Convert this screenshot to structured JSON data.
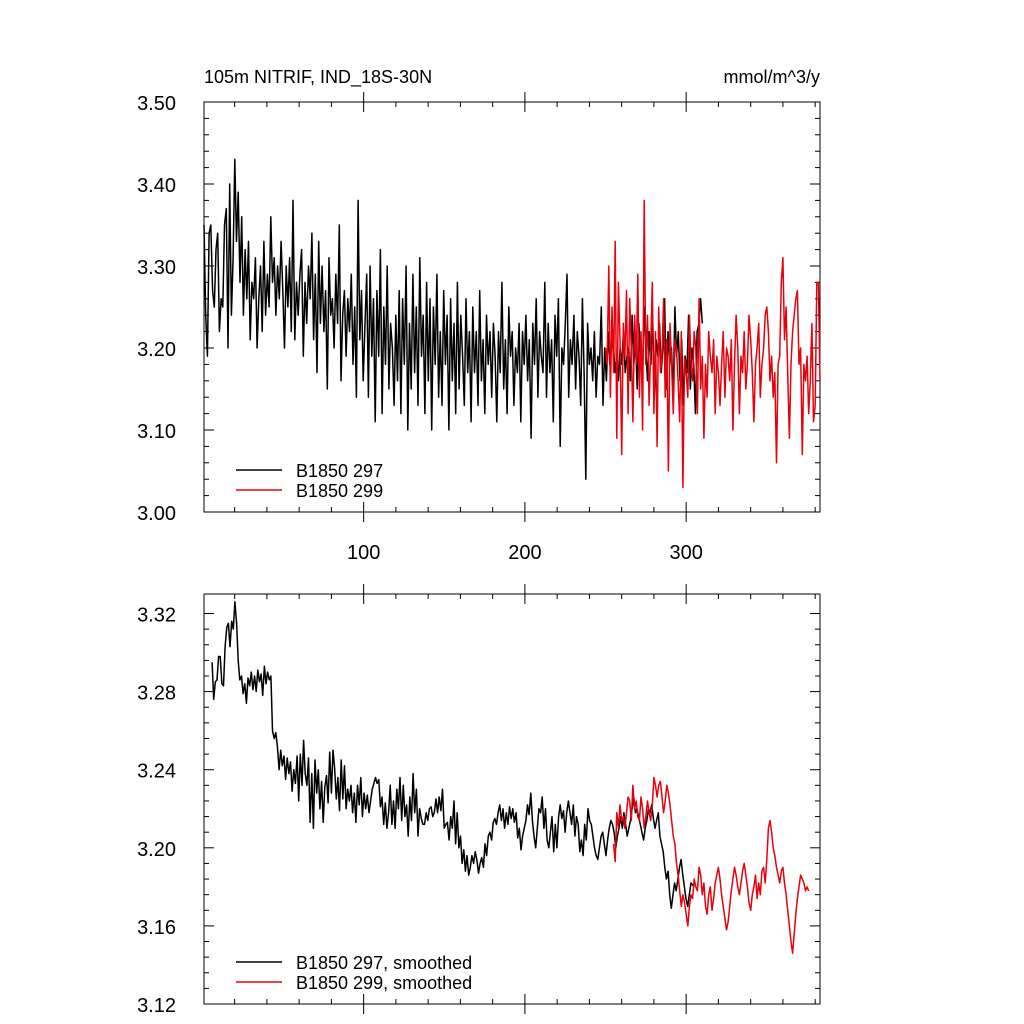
{
  "header": {
    "title": "105m NITRIF, IND_18S-30N",
    "units": "mmol/m^3/y"
  },
  "colors": {
    "series_297": "#000000",
    "series_299": "#e8000b",
    "axes": "#000000",
    "background": "#ffffff"
  },
  "chart_data": [
    {
      "type": "line",
      "panel": "top",
      "xlim": [
        1,
        383
      ],
      "ylim": [
        3.0,
        3.5
      ],
      "x_ticks": [
        100,
        200,
        300
      ],
      "x_tick_labels": [
        "100",
        "200",
        "300"
      ],
      "y_ticks": [
        3.0,
        3.1,
        3.2,
        3.3,
        3.4,
        3.5
      ],
      "y_tick_labels": [
        "3.00",
        "3.10",
        "3.20",
        "3.30",
        "3.40",
        "3.50"
      ],
      "grid": false,
      "legend_position": "bottom-left",
      "series": [
        {
          "name": "B1850 297",
          "color": "#000000",
          "x_start": 1,
          "x_end": 310,
          "values": [
            3.35,
            3.24,
            3.19,
            3.34,
            3.35,
            3.27,
            3.25,
            3.32,
            3.34,
            3.22,
            3.26,
            3.25,
            3.35,
            3.37,
            3.2,
            3.4,
            3.24,
            3.31,
            3.43,
            3.33,
            3.39,
            3.28,
            3.36,
            3.24,
            3.32,
            3.26,
            3.33,
            3.21,
            3.28,
            3.26,
            3.31,
            3.2,
            3.26,
            3.3,
            3.22,
            3.33,
            3.24,
            3.29,
            3.25,
            3.36,
            3.28,
            3.31,
            3.24,
            3.3,
            3.26,
            3.33,
            3.27,
            3.2,
            3.3,
            3.25,
            3.31,
            3.22,
            3.38,
            3.21,
            3.28,
            3.24,
            3.29,
            3.32,
            3.19,
            3.28,
            3.23,
            3.3,
            3.26,
            3.34,
            3.21,
            3.29,
            3.17,
            3.33,
            3.23,
            3.3,
            3.22,
            3.27,
            3.15,
            3.31,
            3.24,
            3.26,
            3.2,
            3.29,
            3.23,
            3.35,
            3.16,
            3.24,
            3.27,
            3.19,
            3.26,
            3.22,
            3.29,
            3.18,
            3.25,
            3.14,
            3.38,
            3.21,
            3.27,
            3.16,
            3.23,
            3.29,
            3.14,
            3.3,
            3.19,
            3.26,
            3.11,
            3.27,
            3.19,
            3.32,
            3.12,
            3.25,
            3.18,
            3.3,
            3.15,
            3.23,
            3.2,
            3.13,
            3.24,
            3.16,
            3.27,
            3.12,
            3.26,
            3.18,
            3.3,
            3.1,
            3.23,
            3.15,
            3.29,
            3.17,
            3.25,
            3.13,
            3.31,
            3.19,
            3.24,
            3.12,
            3.28,
            3.16,
            3.26,
            3.1,
            3.25,
            3.18,
            3.29,
            3.14,
            3.22,
            3.13,
            3.27,
            3.18,
            3.24,
            3.1,
            3.26,
            3.16,
            3.23,
            3.12,
            3.28,
            3.15,
            3.24,
            3.19,
            3.13,
            3.26,
            3.17,
            3.22,
            3.11,
            3.25,
            3.17,
            3.22,
            3.13,
            3.27,
            3.16,
            3.21,
            3.12,
            3.24,
            3.18,
            3.22,
            3.14,
            3.23,
            3.19,
            3.11,
            3.22,
            3.17,
            3.28,
            3.15,
            3.21,
            3.12,
            3.25,
            3.19,
            3.22,
            3.13,
            3.2,
            3.17,
            3.23,
            3.11,
            3.22,
            3.18,
            3.24,
            3.16,
            3.21,
            3.09,
            3.23,
            3.18,
            3.26,
            3.14,
            3.22,
            3.19,
            3.17,
            3.28,
            3.14,
            3.23,
            3.17,
            3.21,
            3.11,
            3.24,
            3.19,
            3.26,
            3.08,
            3.2,
            3.18,
            3.23,
            3.29,
            3.14,
            3.21,
            3.18,
            3.24,
            3.15,
            3.22,
            3.19,
            3.13,
            3.26,
            3.17,
            3.04,
            3.23,
            3.18,
            3.2,
            3.16,
            3.22,
            3.14,
            3.19,
            3.18,
            3.25,
            3.13,
            3.2,
            3.16,
            3.22,
            3.18,
            3.2,
            3.21,
            3.17,
            3.19,
            3.16,
            3.2,
            3.18,
            3.22,
            3.17,
            3.19,
            3.2,
            3.16,
            3.24,
            3.18,
            3.21,
            3.15,
            3.23,
            3.19,
            3.17,
            3.25,
            3.2,
            3.16,
            3.22,
            3.18,
            3.24,
            3.14,
            3.21,
            3.19,
            3.23,
            3.17,
            3.2,
            3.26,
            3.15,
            3.22,
            3.18,
            3.2,
            3.14,
            3.25,
            3.19,
            3.22,
            3.16,
            3.21,
            3.13,
            3.19,
            3.17,
            3.24,
            3.15,
            3.2,
            3.18,
            3.12,
            3.22,
            3.23,
            3.26,
            3.23
          ]
        },
        {
          "name": "B1850 299",
          "color": "#e8000b",
          "x_start": 250,
          "x_end": 383,
          "values": [
            3.2,
            3.18,
            3.3,
            3.14,
            3.25,
            3.17,
            3.33,
            3.09,
            3.28,
            3.21,
            3.07,
            3.23,
            3.19,
            3.27,
            3.12,
            3.26,
            3.2,
            3.11,
            3.24,
            3.18,
            3.29,
            3.14,
            3.22,
            3.1,
            3.38,
            3.18,
            3.24,
            3.13,
            3.2,
            3.28,
            3.12,
            3.22,
            3.08,
            3.25,
            3.17,
            3.19,
            3.26,
            3.14,
            3.21,
            3.05,
            3.23,
            3.18,
            3.12,
            3.21,
            3.2,
            3.16,
            3.11,
            3.22,
            3.03,
            3.19,
            3.17,
            3.14,
            3.24,
            3.18,
            3.16,
            3.22,
            3.2,
            3.12,
            3.26,
            3.15,
            3.19,
            3.09,
            3.18,
            3.14,
            3.22,
            3.19,
            3.17,
            3.21,
            3.12,
            3.19,
            3.17,
            3.13,
            3.18,
            3.22,
            3.14,
            3.2,
            3.19,
            3.16,
            3.21,
            3.1,
            3.18,
            3.24,
            3.2,
            3.12,
            3.19,
            3.17,
            3.22,
            3.15,
            3.18,
            3.24,
            3.21,
            3.17,
            3.11,
            3.18,
            3.2,
            3.23,
            3.14,
            3.18,
            3.2,
            3.24,
            3.25,
            3.22,
            3.16,
            3.19,
            3.14,
            3.17,
            3.06,
            3.18,
            3.19,
            3.28,
            3.31,
            3.21,
            3.25,
            3.17,
            3.09,
            3.18,
            3.22,
            3.24,
            3.26,
            3.27,
            3.18,
            3.2,
            3.07,
            3.18,
            3.16,
            3.19,
            3.12,
            3.16,
            3.23,
            3.11,
            3.13,
            3.28,
            3.28,
            3.16
          ]
        }
      ]
    },
    {
      "type": "line",
      "panel": "bottom",
      "xlim": [
        1,
        383
      ],
      "ylim": [
        3.12,
        3.33
      ],
      "y_ticks": [
        3.12,
        3.16,
        3.2,
        3.24,
        3.28,
        3.32
      ],
      "y_tick_labels": [
        "3.12",
        "3.16",
        "3.20",
        "3.24",
        "3.28",
        "3.32"
      ],
      "grid": false,
      "legend_position": "bottom-left",
      "series": [
        {
          "name": "B1850 297, smoothed",
          "color": "#000000",
          "x_start": 6,
          "x_end": 305,
          "values": [
            3.295,
            3.276,
            3.285,
            3.286,
            3.298,
            3.298,
            3.284,
            3.283,
            3.303,
            3.313,
            3.315,
            3.303,
            3.316,
            3.312,
            3.326,
            3.315,
            3.296,
            3.286,
            3.288,
            3.279,
            3.284,
            3.274,
            3.287,
            3.283,
            3.29,
            3.281,
            3.288,
            3.28,
            3.291,
            3.285,
            3.289,
            3.278,
            3.293,
            3.284,
            3.29,
            3.286,
            3.288,
            3.26,
            3.256,
            3.259,
            3.252,
            3.24,
            3.25,
            3.242,
            3.247,
            3.235,
            3.246,
            3.238,
            3.244,
            3.229,
            3.24,
            3.233,
            3.247,
            3.224,
            3.248,
            3.232,
            3.255,
            3.238,
            3.232,
            3.246,
            3.213,
            3.238,
            3.21,
            3.245,
            3.228,
            3.24,
            3.22,
            3.234,
            3.213,
            3.231,
            3.237,
            3.223,
            3.249,
            3.228,
            3.25,
            3.241,
            3.225,
            3.236,
            3.219,
            3.245,
            3.225,
            3.242,
            3.22,
            3.23,
            3.224,
            3.232,
            3.218,
            3.228,
            3.213,
            3.232,
            3.222,
            3.236,
            3.216,
            3.228,
            3.22,
            3.227,
            3.218,
            3.224,
            3.23,
            3.233,
            3.236,
            3.233,
            3.235,
            3.221,
            3.226,
            3.212,
            3.223,
            3.21,
            3.218,
            3.232,
            3.212,
            3.224,
            3.21,
            3.23,
            3.22,
            3.236,
            3.214,
            3.232,
            3.216,
            3.222,
            3.206,
            3.226,
            3.214,
            3.238,
            3.218,
            3.23,
            3.206,
            3.22,
            3.215,
            3.212,
            3.212,
            3.218,
            3.214,
            3.22,
            3.221,
            3.216,
            3.218,
            3.225,
            3.218,
            3.226,
            3.219,
            3.23,
            3.21,
            3.212,
            3.213,
            3.204,
            3.216,
            3.21,
            3.224,
            3.202,
            3.218,
            3.2,
            3.206,
            3.192,
            3.199,
            3.188,
            3.196,
            3.186,
            3.19,
            3.196,
            3.192,
            3.198,
            3.194,
            3.187,
            3.192,
            3.195,
            3.19,
            3.202,
            3.196,
            3.206,
            3.208,
            3.204,
            3.213,
            3.215,
            3.212,
            3.218,
            3.222,
            3.214,
            3.22,
            3.21,
            3.218,
            3.212,
            3.221,
            3.215,
            3.22,
            3.213,
            3.218,
            3.205,
            3.21,
            3.199,
            3.206,
            3.21,
            3.214,
            3.222,
            3.217,
            3.228,
            3.214,
            3.206,
            3.2,
            3.21,
            3.22,
            3.218,
            3.226,
            3.21,
            3.22,
            3.204,
            3.2,
            3.208,
            3.216,
            3.198,
            3.212,
            3.2,
            3.216,
            3.222,
            3.215,
            3.219,
            3.208,
            3.218,
            3.224,
            3.218,
            3.212,
            3.222,
            3.206,
            3.216,
            3.212,
            3.198,
            3.204,
            3.196,
            3.212,
            3.204,
            3.22,
            3.214,
            3.212,
            3.206,
            3.2,
            3.196,
            3.194,
            3.2,
            3.206,
            3.208,
            3.202,
            3.196,
            3.204,
            3.21,
            3.214,
            3.212,
            3.208,
            3.2,
            3.206,
            3.21,
            3.216,
            3.21,
            3.218,
            3.212,
            3.206,
            3.21,
            3.214,
            3.22,
            3.226,
            3.218,
            3.22,
            3.216,
            3.212,
            3.208,
            3.204,
            3.21,
            3.214,
            3.22,
            3.218,
            3.222,
            3.215,
            3.21,
            3.214,
            3.218,
            3.206,
            3.202,
            3.198,
            3.19,
            3.184,
            3.188,
            3.176,
            3.169,
            3.176,
            3.182,
            3.178,
            3.184,
            3.19,
            3.194,
            3.186,
            3.18,
            3.174,
            3.17,
            3.176,
            3.182,
            3.181,
            3.18
          ]
        },
        {
          "name": "B1850 299, smoothed",
          "color": "#e8000b",
          "x_start": 255,
          "x_end": 376,
          "values": [
            3.202,
            3.193,
            3.218,
            3.21,
            3.222,
            3.214,
            3.216,
            3.21,
            3.218,
            3.226,
            3.224,
            3.214,
            3.232,
            3.22,
            3.224,
            3.216,
            3.214,
            3.226,
            3.22,
            3.21,
            3.216,
            3.224,
            3.218,
            3.214,
            3.222,
            3.236,
            3.232,
            3.226,
            3.232,
            3.234,
            3.226,
            3.218,
            3.224,
            3.232,
            3.228,
            3.222,
            3.214,
            3.206,
            3.202,
            3.192,
            3.186,
            3.178,
            3.17,
            3.176,
            3.172,
            3.166,
            3.16,
            3.17,
            3.176,
            3.174,
            3.184,
            3.18,
            3.178,
            3.19,
            3.186,
            3.176,
            3.182,
            3.17,
            3.166,
            3.176,
            3.18,
            3.168,
            3.174,
            3.182,
            3.186,
            3.19,
            3.184,
            3.176,
            3.17,
            3.164,
            3.158,
            3.162,
            3.17,
            3.178,
            3.184,
            3.19,
            3.186,
            3.18,
            3.176,
            3.182,
            3.188,
            3.192,
            3.186,
            3.18,
            3.172,
            3.168,
            3.176,
            3.18,
            3.186,
            3.174,
            3.182,
            3.176,
            3.188,
            3.19,
            3.182,
            3.194,
            3.21,
            3.214,
            3.208,
            3.2,
            3.196,
            3.19,
            3.186,
            3.182,
            3.188,
            3.19,
            3.182,
            3.176,
            3.168,
            3.16,
            3.152,
            3.146,
            3.156,
            3.166,
            3.174,
            3.18,
            3.186,
            3.184,
            3.182,
            3.178,
            3.18,
            3.178
          ]
        }
      ]
    }
  ]
}
